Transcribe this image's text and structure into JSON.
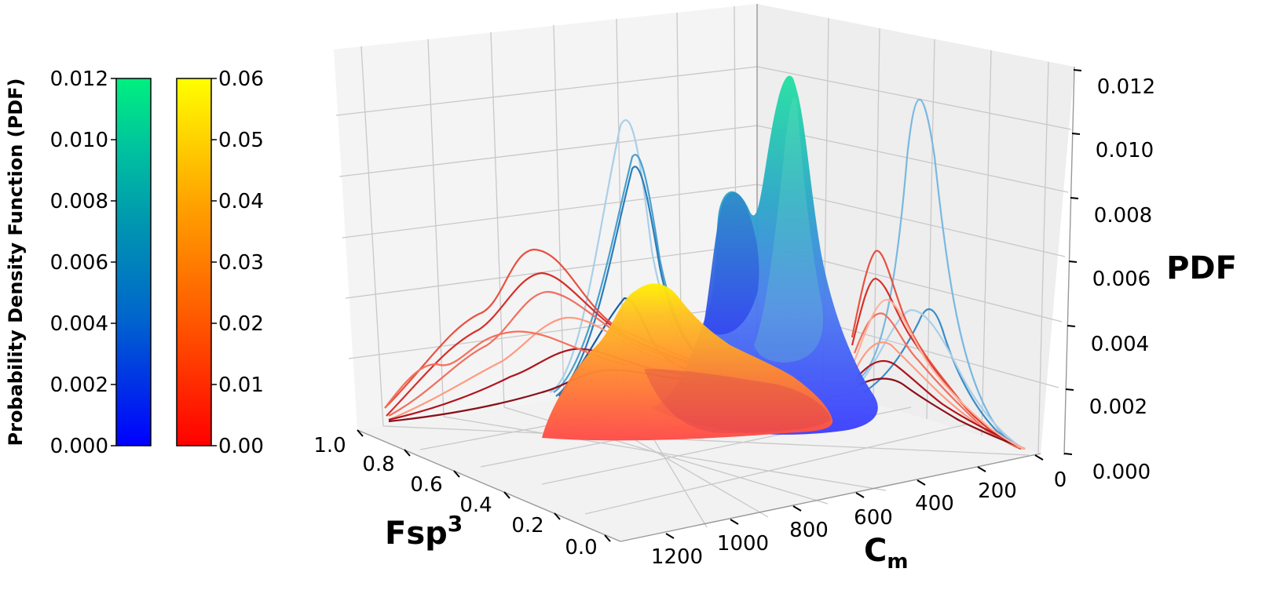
{
  "chart_data": {
    "type": "surface",
    "zlabel": "PDF",
    "xlabel": "C",
    "xlabel_sub": "m",
    "ylabel": "Fsp",
    "ylabel_sup": "3",
    "side_label": "Probability Density Function (PDF)",
    "x_ticks": [
      "0",
      "200",
      "400",
      "600",
      "800",
      "1000",
      "1200"
    ],
    "y_ticks": [
      "0.0",
      "0.2",
      "0.4",
      "0.6",
      "0.8",
      "1.0"
    ],
    "z_ticks": [
      "0.000",
      "0.002",
      "0.004",
      "0.006",
      "0.008",
      "0.010",
      "0.012"
    ],
    "xlim": [
      0,
      1300
    ],
    "ylim": [
      0,
      1.0
    ],
    "zlim": [
      0,
      0.012
    ],
    "colorbars": [
      {
        "name": "blue-green",
        "ticks": [
          "0.000",
          "0.002",
          "0.004",
          "0.006",
          "0.008",
          "0.010",
          "0.012"
        ],
        "range": [
          0,
          0.012
        ],
        "colors": [
          "#0000ff",
          "#0055dd",
          "#0088bb",
          "#00a8a0",
          "#00c890",
          "#00f080"
        ]
      },
      {
        "name": "red-yellow",
        "ticks": [
          "0.00",
          "0.01",
          "0.02",
          "0.03",
          "0.04",
          "0.05",
          "0.06"
        ],
        "range": [
          0,
          0.06
        ],
        "colors": [
          "#ff0000",
          "#ff4a00",
          "#ff8000",
          "#ffaa00",
          "#ffd000",
          "#ffff00"
        ]
      }
    ],
    "surfaces": [
      {
        "name": "blue-surface",
        "peaks": [
          {
            "x": 350,
            "y": 0.45,
            "z": 0.0118
          },
          {
            "x": 600,
            "y": 0.65,
            "z": 0.009
          }
        ]
      },
      {
        "name": "orange-surface",
        "peaks": [
          {
            "x": 800,
            "y": 0.8,
            "z": 0.0055
          }
        ]
      }
    ],
    "grid": true,
    "colors": {
      "pane_left": "#ececec",
      "pane_right": "#e2e2e2",
      "grid": "#c4c4c4"
    }
  }
}
